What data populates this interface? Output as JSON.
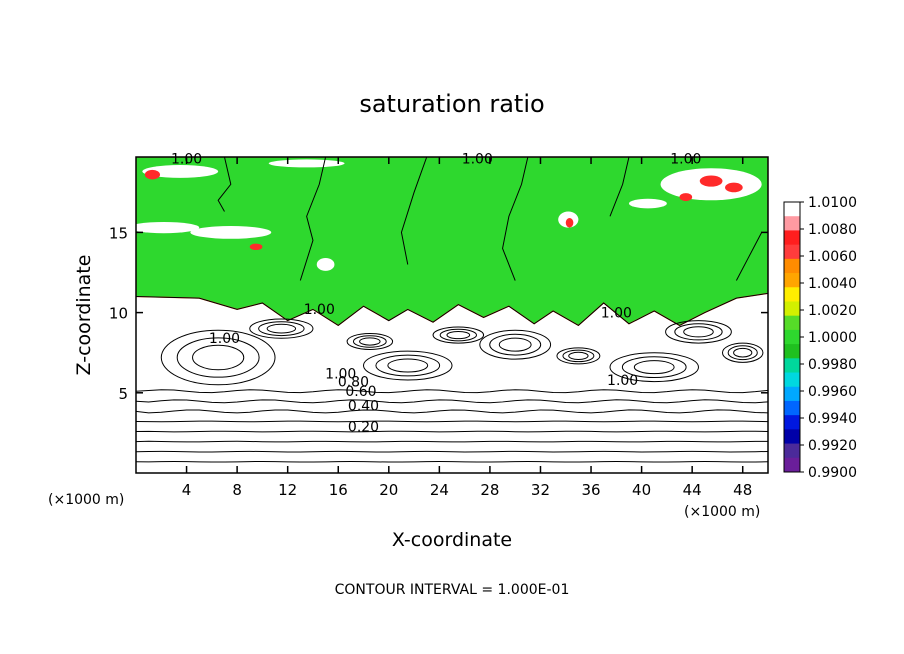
{
  "chart_data": {
    "type": "heatmap",
    "title": "saturation ratio",
    "xlabel": "X-coordinate",
    "ylabel": "Z-coordinate",
    "x_unit_left": "(×1000 m)",
    "x_unit_right": "(×1000 m)",
    "footer": "CONTOUR INTERVAL = 1.000E-01",
    "xlim": [
      0,
      50
    ],
    "ylim": [
      0,
      19.7
    ],
    "x_ticks": [
      4,
      8,
      12,
      16,
      20,
      24,
      28,
      32,
      36,
      40,
      44,
      48
    ],
    "x_tick_labels": [
      "4",
      "8",
      "12",
      "16",
      "20",
      "24",
      "28",
      "32",
      "36",
      "40",
      "44",
      "48"
    ],
    "y_ticks": [
      5,
      10,
      15
    ],
    "y_tick_labels": [
      "5",
      "10",
      "15"
    ],
    "colorbar": {
      "labels": [
        "1.0100",
        "1.0080",
        "1.0060",
        "1.0040",
        "1.0020",
        "1.0000",
        "0.9980",
        "0.9960",
        "0.9940",
        "0.9920",
        "0.9900"
      ],
      "colors": [
        "#ffffff",
        "#ff9aa2",
        "#ff1e1e",
        "#ff3c3c",
        "#ff8c00",
        "#ffa500",
        "#ffee00",
        "#d2f000",
        "#56dc28",
        "#2ed82e",
        "#1fc01f",
        "#00d89c",
        "#00d8e0",
        "#00a8ff",
        "#0066ff",
        "#0018e0",
        "#0000a8",
        "#4b2a9a",
        "#6a1e9a"
      ]
    },
    "contour_labels": [
      {
        "text": "1.00",
        "x": 4,
        "z": 19.3
      },
      {
        "text": "1.00",
        "x": 27,
        "z": 19.3
      },
      {
        "text": "1.00",
        "x": 43.5,
        "z": 19.3
      },
      {
        "text": "1.00",
        "x": 14.5,
        "z": 9.9
      },
      {
        "text": "1.00",
        "x": 7,
        "z": 8.1
      },
      {
        "text": "1.00",
        "x": 38,
        "z": 9.7
      },
      {
        "text": "1.00",
        "x": 38.5,
        "z": 5.5
      },
      {
        "text": "1.00",
        "x": 16.2,
        "z": 5.9
      },
      {
        "text": "0.80",
        "x": 17.2,
        "z": 5.4
      },
      {
        "text": "0.60",
        "x": 17.8,
        "z": 4.8
      },
      {
        "text": "0.40",
        "x": 18,
        "z": 3.9
      },
      {
        "text": "0.20",
        "x": 18,
        "z": 2.6
      }
    ],
    "contour_levels_flat": [
      0.2,
      0.3,
      0.4,
      0.5,
      0.6,
      0.7,
      0.8,
      0.9
    ],
    "green_region": [
      [
        0,
        19.7
      ],
      [
        50,
        19.7
      ],
      [
        50,
        11.2
      ],
      [
        47.5,
        10.9
      ],
      [
        45,
        10
      ],
      [
        43,
        9.2
      ],
      [
        41,
        10.1
      ],
      [
        39,
        9.3
      ],
      [
        37,
        10.6
      ],
      [
        35,
        9.2
      ],
      [
        33,
        10.1
      ],
      [
        31.5,
        9.3
      ],
      [
        29.5,
        10.4
      ],
      [
        27.5,
        9.7
      ],
      [
        25.5,
        10.5
      ],
      [
        23.5,
        9.4
      ],
      [
        21.5,
        10.2
      ],
      [
        20,
        9.5
      ],
      [
        18,
        10.4
      ],
      [
        16,
        9.2
      ],
      [
        14,
        10.2
      ],
      [
        12,
        9.5
      ],
      [
        10,
        10.6
      ],
      [
        8,
        10.2
      ],
      [
        5,
        10.9
      ],
      [
        0,
        11
      ]
    ],
    "white_patches": [
      {
        "x": 2.2,
        "z": 15.3,
        "rx": 2.8,
        "rz": 0.35
      },
      {
        "x": 7.5,
        "z": 15.0,
        "rx": 3.2,
        "rz": 0.4
      },
      {
        "x": 3.5,
        "z": 18.8,
        "rx": 3.0,
        "rz": 0.4
      },
      {
        "x": 13.5,
        "z": 19.3,
        "rx": 3.0,
        "rz": 0.25
      },
      {
        "x": 45.5,
        "z": 18.0,
        "rx": 4.0,
        "rz": 1.0
      },
      {
        "x": 40.5,
        "z": 16.8,
        "rx": 1.5,
        "rz": 0.3
      },
      {
        "x": 34.2,
        "z": 15.8,
        "rx": 0.8,
        "rz": 0.5
      },
      {
        "x": 15,
        "z": 13,
        "rx": 0.7,
        "rz": 0.4
      }
    ],
    "red_patches": [
      {
        "x": 45.5,
        "z": 18.2,
        "rx": 0.9,
        "rz": 0.35
      },
      {
        "x": 47.3,
        "z": 17.8,
        "rx": 0.7,
        "rz": 0.3
      },
      {
        "x": 43.5,
        "z": 17.2,
        "rx": 0.5,
        "rz": 0.25
      },
      {
        "x": 1.3,
        "z": 18.6,
        "rx": 0.6,
        "rz": 0.3
      },
      {
        "x": 9.5,
        "z": 14.1,
        "rx": 0.5,
        "rz": 0.2
      },
      {
        "x": 34.3,
        "z": 15.6,
        "rx": 0.3,
        "rz": 0.3
      }
    ],
    "cells": [
      {
        "x": 6.5,
        "z": 7.2,
        "rx": 4.5,
        "rz": 1.7
      },
      {
        "x": 21.5,
        "z": 6.7,
        "rx": 3.5,
        "rz": 0.9
      },
      {
        "x": 30,
        "z": 8.0,
        "rx": 2.8,
        "rz": 0.9
      },
      {
        "x": 41,
        "z": 6.6,
        "rx": 3.5,
        "rz": 0.9
      },
      {
        "x": 11.5,
        "z": 9.0,
        "rx": 2.5,
        "rz": 0.6
      },
      {
        "x": 44.5,
        "z": 8.8,
        "rx": 2.6,
        "rz": 0.7
      },
      {
        "x": 18.5,
        "z": 8.2,
        "rx": 1.8,
        "rz": 0.5
      },
      {
        "x": 35,
        "z": 7.3,
        "rx": 1.7,
        "rz": 0.5
      },
      {
        "x": 25.5,
        "z": 8.6,
        "rx": 2.0,
        "rz": 0.5
      },
      {
        "x": 48,
        "z": 7.5,
        "rx": 1.6,
        "rz": 0.6
      }
    ],
    "vertical_contours": [
      [
        [
          7,
          19.7
        ],
        [
          7.5,
          18
        ],
        [
          6.5,
          17
        ],
        [
          7,
          16.3
        ]
      ],
      [
        [
          15,
          19.7
        ],
        [
          14.5,
          18
        ],
        [
          13.5,
          16
        ],
        [
          14,
          14.5
        ],
        [
          13,
          12
        ]
      ],
      [
        [
          23,
          19.7
        ],
        [
          22,
          17.5
        ],
        [
          21,
          15
        ],
        [
          21.5,
          13
        ]
      ],
      [
        [
          31,
          19.7
        ],
        [
          30.5,
          18
        ],
        [
          29.5,
          16
        ],
        [
          29,
          14
        ],
        [
          30,
          12
        ]
      ],
      [
        [
          39,
          19.7
        ],
        [
          38.5,
          18
        ],
        [
          37.5,
          16
        ]
      ],
      [
        [
          49.5,
          15
        ],
        [
          48.5,
          13.5
        ],
        [
          47.5,
          12
        ]
      ]
    ],
    "grid": false,
    "legend": "right"
  }
}
